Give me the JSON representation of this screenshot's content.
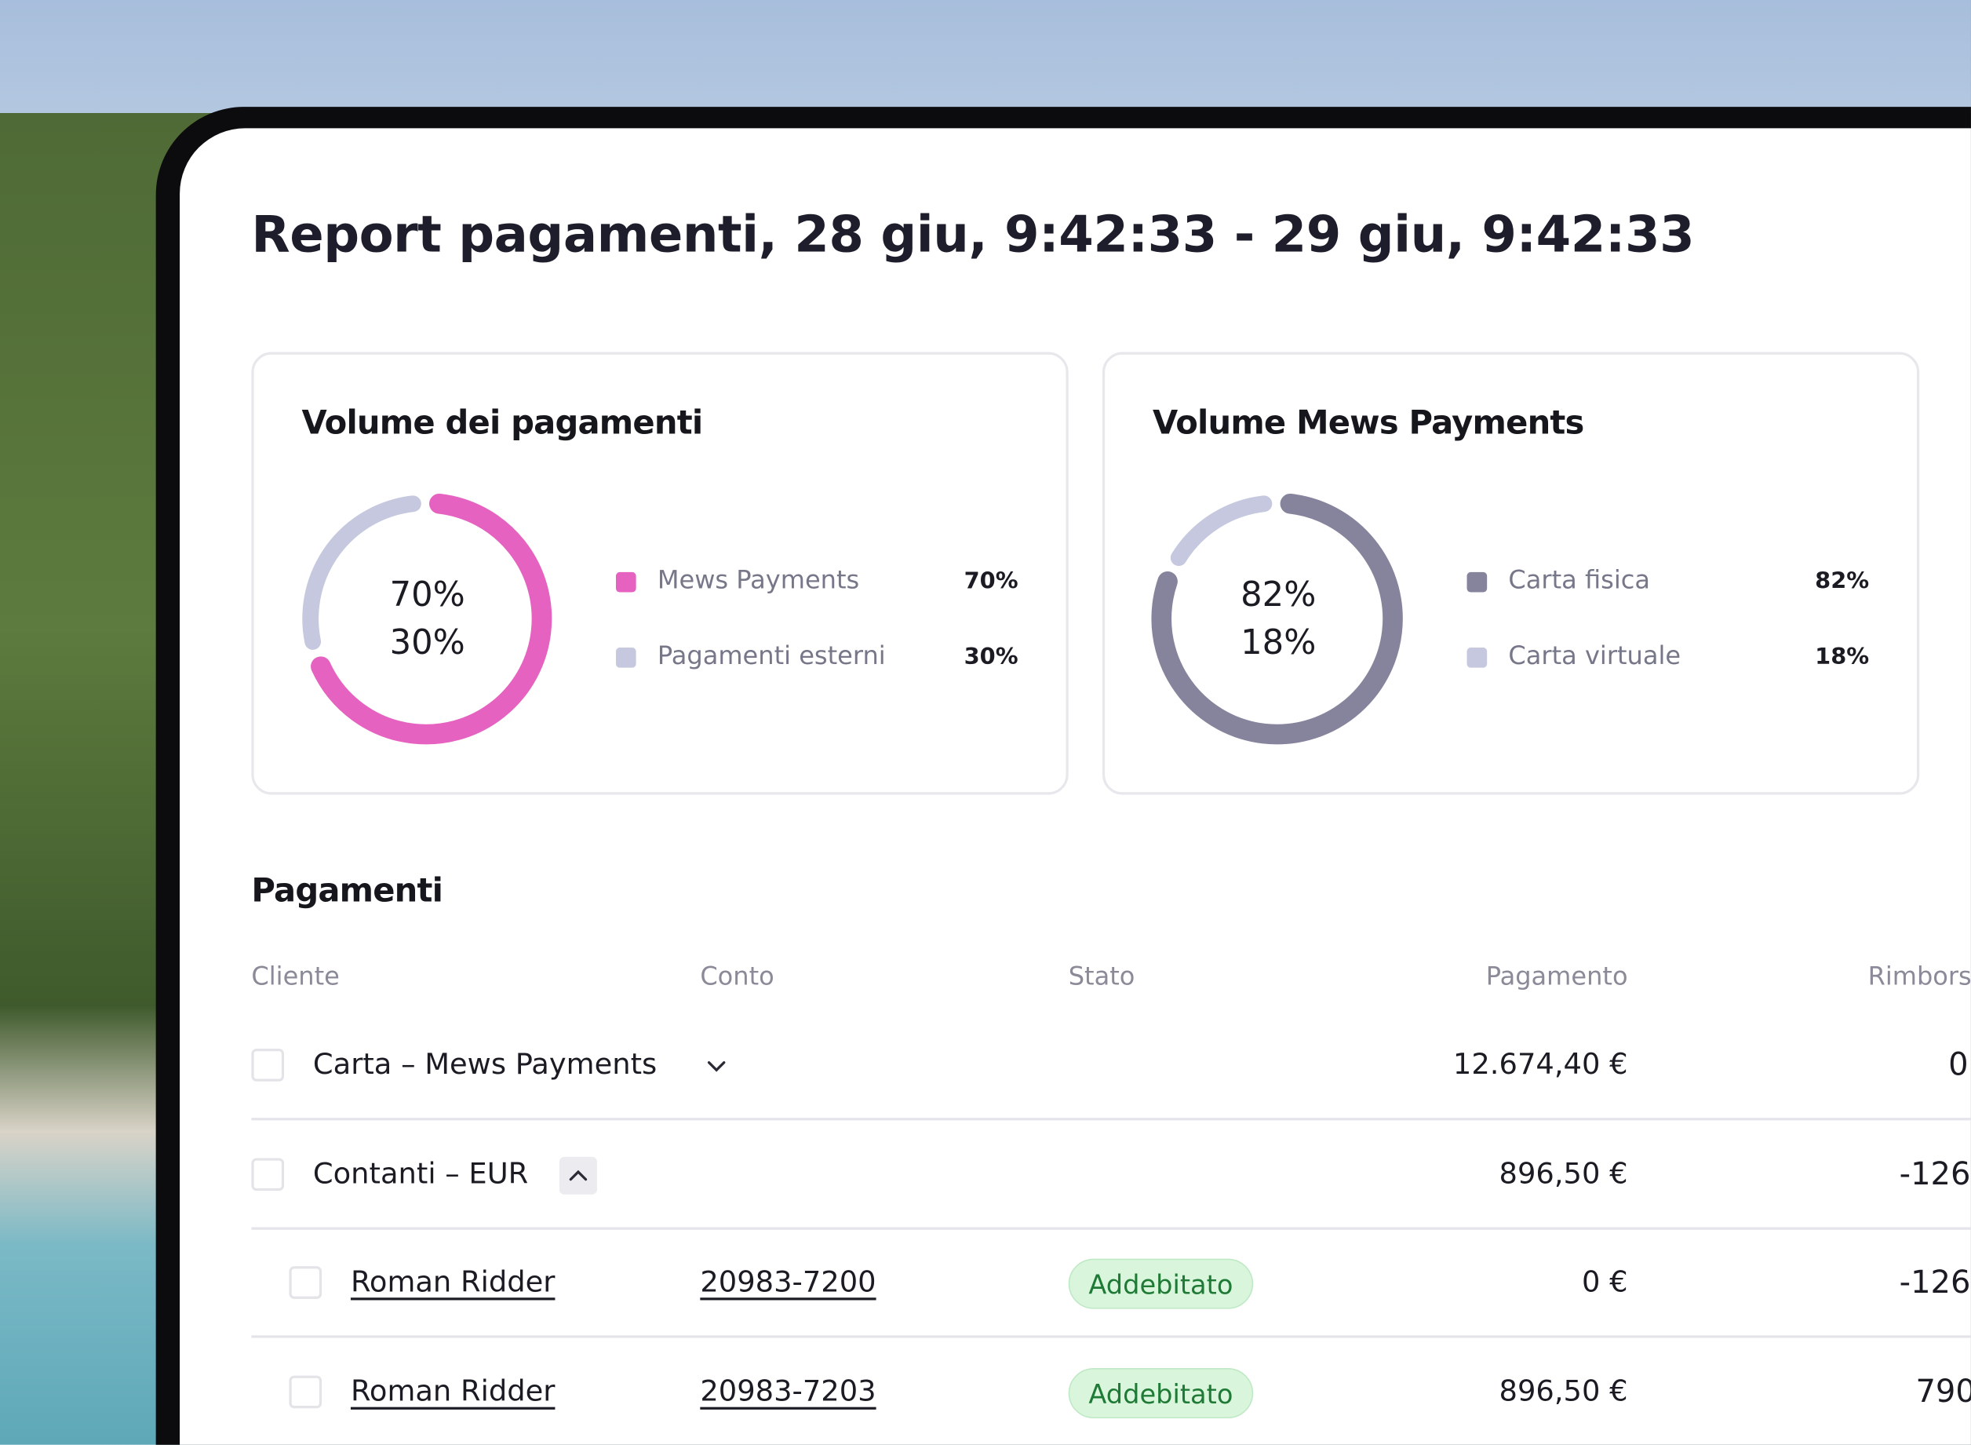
{
  "title": "Report pagamenti, 28 giu, 9:42:33 - 29 giu, 9:42:33",
  "cards": [
    {
      "title": "Volume dei pagamenti",
      "type": "pie",
      "series": [
        {
          "name": "Mews Payments",
          "color": "#e662c0",
          "value": 70,
          "value_label": "70%"
        },
        {
          "name": "Pagamenti esterni",
          "color": "#c5c8de",
          "value": 30,
          "value_label": "30%"
        }
      ]
    },
    {
      "title": "Volume Mews Payments",
      "type": "pie",
      "series": [
        {
          "name": "Carta fisica",
          "color": "#86849c",
          "value": 82,
          "value_label": "82%"
        },
        {
          "name": "Carta virtuale",
          "color": "#c5c8de",
          "value": 18,
          "value_label": "18%"
        }
      ]
    }
  ],
  "table": {
    "title": "Pagamenti",
    "columns": [
      "Cliente",
      "Conto",
      "Stato",
      "Pagamento",
      "Rimborsi"
    ],
    "rows": [
      {
        "cliente": "Carta – Mews Payments",
        "expanded": false,
        "pagamento": "12.674,40 €",
        "rimborsi": "0"
      },
      {
        "cliente": "Contanti – EUR",
        "expanded": true,
        "pagamento": "896,50 €",
        "rimborsi": "-126"
      },
      {
        "cliente": "Roman Ridder",
        "conto": "20983-7200",
        "stato": "Addebitato",
        "pagamento": "0 €",
        "rimborsi": "-126",
        "child": true
      },
      {
        "cliente": "Roman Ridder",
        "conto": "20983-7203",
        "stato": "Addebitato",
        "pagamento": "896,50 €",
        "rimborsi": "790",
        "child": true
      }
    ]
  }
}
